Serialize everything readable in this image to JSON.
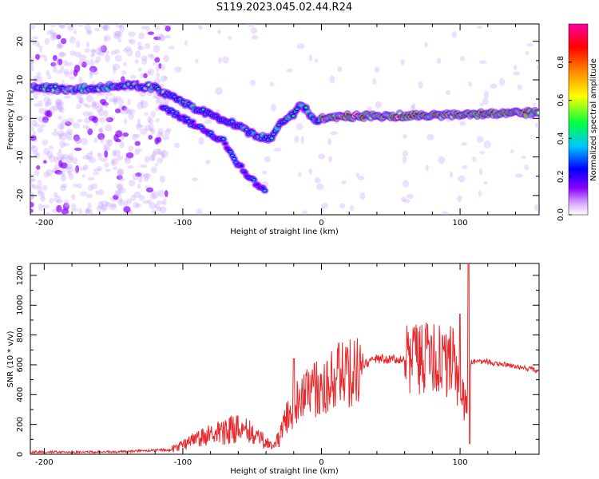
{
  "title": "S119.2023.045.02.44.R24",
  "chart_data": [
    {
      "type": "heatmap",
      "title": "S119.2023.045.02.44.R24",
      "xlabel": "Height of straight line (km)",
      "ylabel": "Frequency (Hz)",
      "xlim": [
        -210,
        157
      ],
      "ylim": [
        -25,
        24.5
      ],
      "xticks": [
        -200,
        -100,
        0,
        100
      ],
      "yticks": [
        -20,
        -10,
        0,
        10,
        20
      ],
      "colorbar": {
        "label": "Normalized spectral amplitude",
        "range": [
          0,
          1
        ],
        "ticks": [
          0.0,
          0.2,
          0.4,
          0.6,
          0.8
        ],
        "colormap": [
          "#ffffff",
          "#8a00ff",
          "#0000ff",
          "#00c8ff",
          "#00ff40",
          "#ffff00",
          "#ff8000",
          "#ff0000",
          "#ff00a0"
        ]
      },
      "ridge": [
        {
          "x": -210,
          "y": 8
        },
        {
          "x": -180,
          "y": 7.5
        },
        {
          "x": -160,
          "y": 8
        },
        {
          "x": -140,
          "y": 8.5
        },
        {
          "x": -120,
          "y": 8
        },
        {
          "x": -110,
          "y": 6
        },
        {
          "x": -100,
          "y": 4
        },
        {
          "x": -80,
          "y": 1
        },
        {
          "x": -60,
          "y": -2
        },
        {
          "x": -45,
          "y": -5
        },
        {
          "x": -35,
          "y": -5
        },
        {
          "x": -30,
          "y": -1
        },
        {
          "x": -20,
          "y": 1
        },
        {
          "x": -15,
          "y": 3.5
        },
        {
          "x": -10,
          "y": 2
        },
        {
          "x": -5,
          "y": -1
        },
        {
          "x": 0,
          "y": 0
        },
        {
          "x": 10,
          "y": 0.5
        },
        {
          "x": 50,
          "y": 0.7
        },
        {
          "x": 100,
          "y": 1
        },
        {
          "x": 157,
          "y": 1.5
        }
      ],
      "secondary_ridge": [
        {
          "x": -115,
          "y": 3
        },
        {
          "x": -90,
          "y": -2
        },
        {
          "x": -70,
          "y": -6
        },
        {
          "x": -60,
          "y": -12
        },
        {
          "x": -50,
          "y": -16
        },
        {
          "x": -40,
          "y": -19
        }
      ]
    },
    {
      "type": "line",
      "xlabel": "Height of straight line (km)",
      "ylabel": "SNR (10 * v/v)",
      "xlim": [
        -210,
        157
      ],
      "ylim": [
        0,
        1280
      ],
      "xticks": [
        -200,
        -100,
        0,
        100
      ],
      "yticks": [
        0,
        200,
        400,
        600,
        800,
        1000,
        1200
      ],
      "series": [
        {
          "color": "#e8292c",
          "envelope": [
            {
              "x": -210,
              "y": 15
            },
            {
              "x": -150,
              "y": 15
            },
            {
              "x": -110,
              "y": 30
            },
            {
              "x": -100,
              "y": 60
            },
            {
              "x": -80,
              "y": 140
            },
            {
              "x": -60,
              "y": 170
            },
            {
              "x": -45,
              "y": 120
            },
            {
              "x": -35,
              "y": 40
            },
            {
              "x": -30,
              "y": 120
            },
            {
              "x": -25,
              "y": 250
            },
            {
              "x": -20,
              "y": 320
            },
            {
              "x": -10,
              "y": 400
            },
            {
              "x": 0,
              "y": 450
            },
            {
              "x": 10,
              "y": 500
            },
            {
              "x": 20,
              "y": 560
            },
            {
              "x": 40,
              "y": 640
            },
            {
              "x": 60,
              "y": 630
            },
            {
              "x": 80,
              "y": 650
            },
            {
              "x": 95,
              "y": 620
            },
            {
              "x": 105,
              "y": 300
            },
            {
              "x": 108,
              "y": 620
            },
            {
              "x": 120,
              "y": 620
            },
            {
              "x": 140,
              "y": 590
            },
            {
              "x": 157,
              "y": 560
            }
          ],
          "peaks": [
            {
              "x": -20,
              "y": 640
            },
            {
              "x": -5,
              "y": 610
            },
            {
              "x": 75,
              "y": 840
            },
            {
              "x": 100,
              "y": 940
            },
            {
              "x": 106,
              "y": 1280
            },
            {
              "x": 107,
              "y": 70
            }
          ]
        }
      ]
    }
  ]
}
